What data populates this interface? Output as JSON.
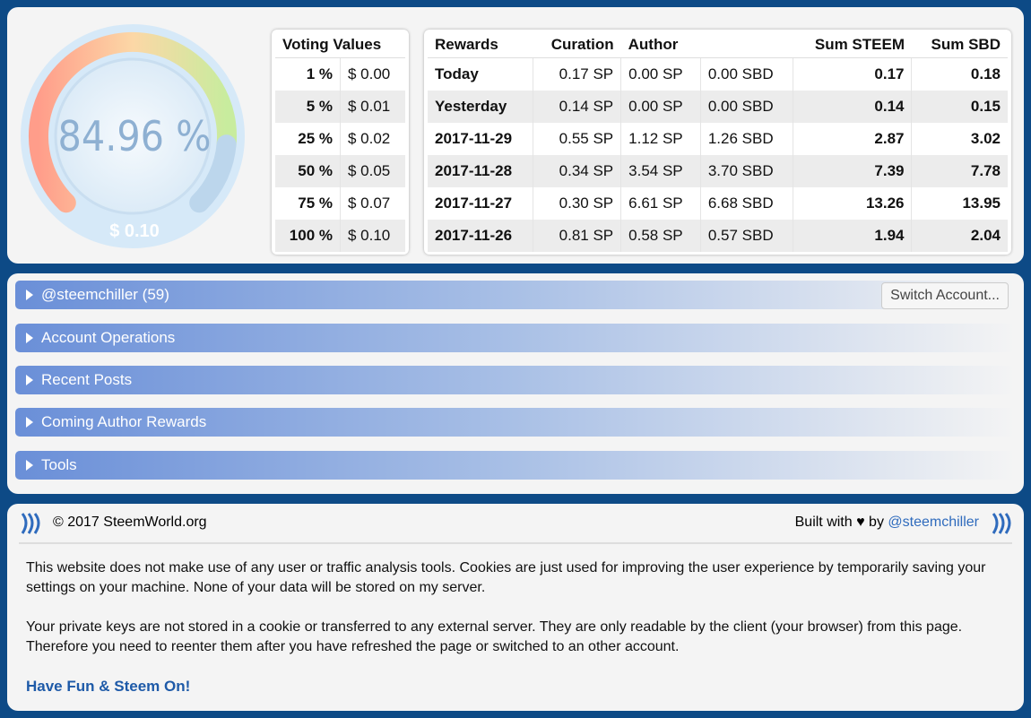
{
  "gauge": {
    "value_label": "84.96 %",
    "sub_label": "$ 0.10"
  },
  "voting_values": {
    "header": "Voting Values",
    "rows": [
      [
        "1 %",
        "$ 0.00"
      ],
      [
        "5 %",
        "$ 0.01"
      ],
      [
        "25 %",
        "$ 0.02"
      ],
      [
        "50 %",
        "$ 0.05"
      ],
      [
        "75 %",
        "$ 0.07"
      ],
      [
        "100 %",
        "$ 0.10"
      ]
    ]
  },
  "rewards": {
    "headers": [
      "Rewards",
      "Curation",
      "Author",
      "Sum STEEM",
      "Sum SBD"
    ],
    "rows": [
      [
        "Today",
        "0.17 SP",
        "0.00 SP",
        "0.00 SBD",
        "0.17",
        "0.18"
      ],
      [
        "Yesterday",
        "0.14 SP",
        "0.00 SP",
        "0.00 SBD",
        "0.14",
        "0.15"
      ],
      [
        "2017-11-29",
        "0.55 SP",
        "1.12 SP",
        "1.26 SBD",
        "2.87",
        "3.02"
      ],
      [
        "2017-11-28",
        "0.34 SP",
        "3.54 SP",
        "3.70 SBD",
        "7.39",
        "7.78"
      ],
      [
        "2017-11-27",
        "0.30 SP",
        "6.61 SP",
        "6.68 SBD",
        "13.26",
        "13.95"
      ],
      [
        "2017-11-26",
        "0.81 SP",
        "0.58 SP",
        "0.57 SBD",
        "1.94",
        "2.04"
      ]
    ]
  },
  "sections": [
    "@steemchiller (59)",
    "Account Operations",
    "Recent Posts",
    "Coming Author Rewards",
    "Tools"
  ],
  "switch_button": "Switch Account...",
  "footer": {
    "copyright": "© 2017 SteemWorld.org",
    "built_with": "Built with ♥ by",
    "author_link": "@steemchiller",
    "paragraphs": [
      "This website does not make use of any user or traffic analysis tools. Cookies are just used for improving the user experience by temporarily saving your settings on your machine. None of your data will be stored on my server.",
      "Your private keys are not stored in a cookie or transferred to any external server. They are only readable by the client (your browser) from this page. Therefore you need to reenter them after you have refreshed the page or switched to an other account."
    ],
    "closing": "Have Fun & Steem On!"
  }
}
